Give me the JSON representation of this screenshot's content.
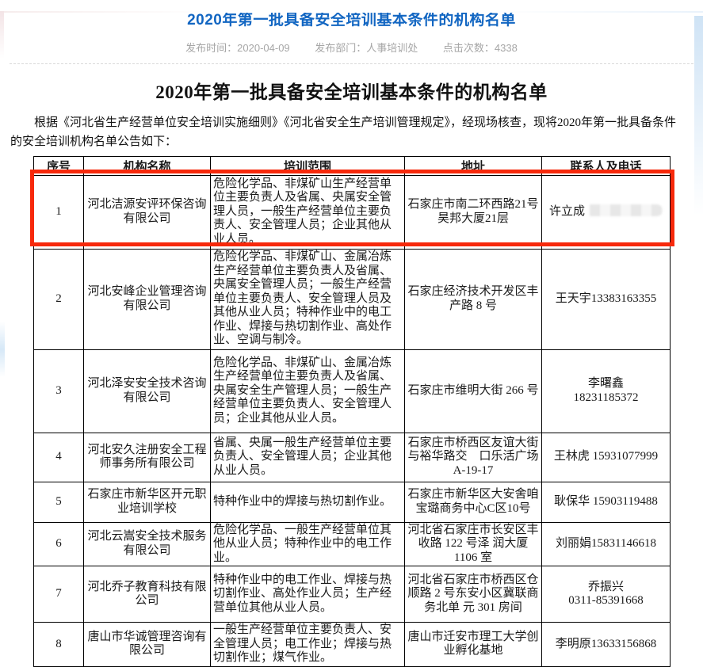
{
  "page": {
    "title": "2020年第一批具备安全培训基本条件的机构名单",
    "meta_items": [
      "发布时间：2020-04-09",
      "发布部门：人事培训处",
      "点击次数：4338"
    ],
    "heading": "2020年第一批具备安全培训基本条件的机构名单",
    "intro": "根据《河北省生产经营单位安全培训实施细则》《河北省安全生产培训管理规定》，经现场核查，现将2020年第一批具备条件的安全培训机构名单公告如下：",
    "colors": {
      "title_blue": "#1266c2",
      "highlight_red": "#f7290b",
      "meta_gray": "#a6a6a6"
    }
  },
  "table": {
    "headers": [
      "序号",
      "机构名称",
      "培训范围",
      "地址",
      "联系人及电话"
    ],
    "rows": [
      {
        "no": "1",
        "name": "河北洁源安评环保咨询有限公司",
        "scope": "危险化学品、非煤矿山生产经营单位主要负责人及省属、央属安全管理人员，一般生产经营单位主要负责人、安全管理人员；企业其他从业人员。",
        "address": "石家庄市南二环西路21号昊邦大厦21层",
        "contact": "许立成",
        "phone_redacted": true,
        "highlighted": true
      },
      {
        "no": "2",
        "name": "河北安峰企业管理咨询有限公司",
        "scope": "危险化学品、非煤矿山、金属冶炼生产经营单位主要负责人及省属、央属安全管理人员；一般生产经营单位主要负责人、安全管理人员及其他从业人员；特种作业中的电工作业、焊接与热切割作业、高处作业、空调与制冷。",
        "address": "石家庄经济技术开发区丰产路 8 号",
        "contact": "王天宇13383163355"
      },
      {
        "no": "3",
        "name": "河北泽安安全技术咨询有限公司",
        "scope": "危险化学品、非煤矿山、金属冶炼生产经营单位主要负责人及省属、央属安全生产管理人员；一般生产经营单位主要负责人、安全管理人员；企业其他从业人员。",
        "address": "石家庄市维明大街 266 号",
        "contact": "李曙鑫\n18231185372"
      },
      {
        "no": "4",
        "name": "河北安久注册安全工程师事务所有限公司",
        "scope": "省属、央属一般生产经营单位主要负责人、安全管理人员；企业其他从业人员。",
        "address": "石家庄市桥西区友谊大街与裕华路交　口乐活广场 A-19-17",
        "contact": "王林虎 15931077999"
      },
      {
        "no": "5",
        "name": "石家庄市新华区开元职业培训学校",
        "scope": "特种作业中的焊接与热切割作业。",
        "address": "石家庄市新华区大安舍咱宝璐商务中心C区10号",
        "contact": "耿保华 15903119488"
      },
      {
        "no": "6",
        "name": "河北云嵩安全技术服务有限公司",
        "scope": "危险化学品、一般生产经营单位其他从业人员；特种作业中的电工作业。",
        "address": "河北省石家庄市长安区丰收路 122 号泽 润大厦 1106 室",
        "contact": "刘丽娟15831146618"
      },
      {
        "no": "7",
        "name": "河北乔子教育科技有限公司",
        "scope": "特种作业中的电工作业、焊接与热切割作业、高处作业人员；生产经营单位其他从业人员。",
        "address": "河北省石家庄市桥西区仓顺路 2 号东安小区冀联商务北单 元 301 房间",
        "contact": "乔振兴\n0311-85391668"
      },
      {
        "no": "8",
        "name": "唐山市华诚管理咨询有限公司",
        "scope": "一般生产经营单位主要负责人、安全管理人员；电工作业；焊接与热切割作业；煤气作业。",
        "address": "唐山市迁安市理工大学创业孵化基地",
        "contact": "李明原13633156868"
      }
    ]
  }
}
